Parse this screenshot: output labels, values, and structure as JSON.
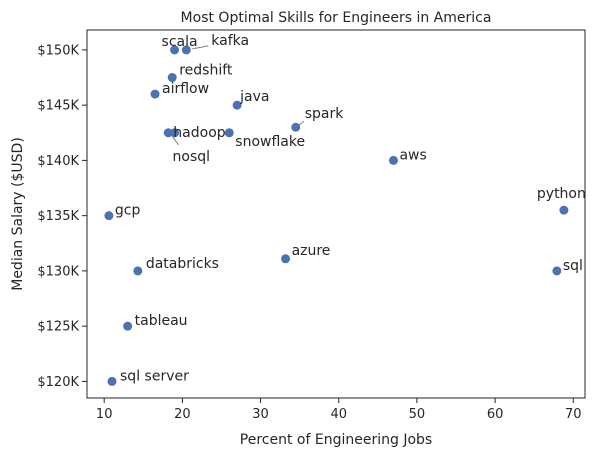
{
  "chart_data": {
    "type": "scatter",
    "title": "Most Optimal Skills for Engineers in America",
    "xlabel": "Percent of Engineering Jobs",
    "ylabel": "Median Salary ($USD)",
    "xlim": [
      7.8,
      71.5
    ],
    "ylim": [
      118500,
      151800
    ],
    "xticks": [
      10,
      20,
      30,
      40,
      50,
      60,
      70
    ],
    "yticks": [
      120000,
      125000,
      130000,
      135000,
      140000,
      145000,
      150000
    ],
    "ytick_labels": [
      "$120K",
      "$125K",
      "$130K",
      "$135K",
      "$140K",
      "$145K",
      "$150K"
    ],
    "grid": false,
    "marker_color": "#4c72b0",
    "points": [
      {
        "label": "scala",
        "x": 19.0,
        "y": 150000
      },
      {
        "label": "kafka",
        "x": 20.5,
        "y": 150000
      },
      {
        "label": "redshift",
        "x": 18.7,
        "y": 147500
      },
      {
        "label": "airflow",
        "x": 16.5,
        "y": 146000
      },
      {
        "label": "java",
        "x": 27.0,
        "y": 145000
      },
      {
        "label": "spark",
        "x": 34.5,
        "y": 143000
      },
      {
        "label": "hadoop",
        "x": 18.2,
        "y": 142500
      },
      {
        "label": "nosql",
        "x": 19.0,
        "y": 142500
      },
      {
        "label": "snowflake",
        "x": 26.0,
        "y": 142500
      },
      {
        "label": "aws",
        "x": 47.0,
        "y": 140000
      },
      {
        "label": "python",
        "x": 68.8,
        "y": 135500
      },
      {
        "label": "gcp",
        "x": 10.6,
        "y": 135000
      },
      {
        "label": "azure",
        "x": 33.2,
        "y": 131100
      },
      {
        "label": "databricks",
        "x": 14.3,
        "y": 130000
      },
      {
        "label": "sql",
        "x": 67.9,
        "y": 130000
      },
      {
        "label": "tableau",
        "x": 13.0,
        "y": 125000
      },
      {
        "label": "sql server",
        "x": 11.0,
        "y": 120000
      }
    ]
  }
}
